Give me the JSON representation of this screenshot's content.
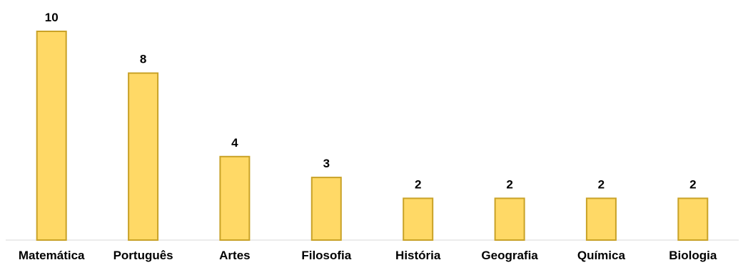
{
  "chart_data": {
    "type": "bar",
    "title": "",
    "xlabel": "",
    "ylabel": "",
    "categories": [
      "Matemática",
      "Português",
      "Artes",
      "Filosofia",
      "História",
      "Geografia",
      "Química",
      "Biologia"
    ],
    "values": [
      10,
      8,
      4,
      3,
      2,
      2,
      2,
      2
    ],
    "data_labels": [
      "10",
      "8",
      "4",
      "3",
      "2",
      "2",
      "2",
      "2"
    ],
    "ylim": [
      0,
      10
    ],
    "grid": false,
    "legend": "none",
    "colors": {
      "bar_fill": "#FFD966",
      "bar_stroke": "#C9A227",
      "baseline": "#D9D9D9",
      "text": "#000000"
    }
  }
}
